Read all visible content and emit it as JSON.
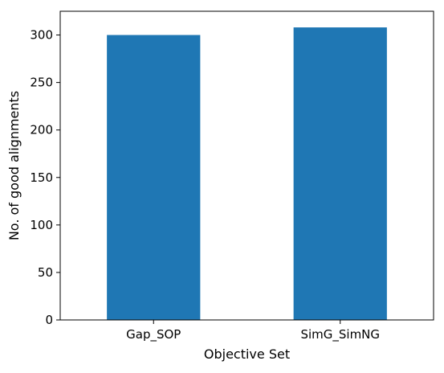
{
  "chart_data": {
    "type": "bar",
    "categories": [
      "Gap_SOP",
      "SimG_SimNG"
    ],
    "values": [
      300,
      308
    ],
    "title": "",
    "xlabel": "Objective Set",
    "ylabel": "No. of good alignments",
    "ylim": [
      0,
      325
    ],
    "yticks": [
      0,
      50,
      100,
      150,
      200,
      250,
      300
    ],
    "grid": false,
    "legend": "none",
    "bar_color": "#1f77b4"
  }
}
